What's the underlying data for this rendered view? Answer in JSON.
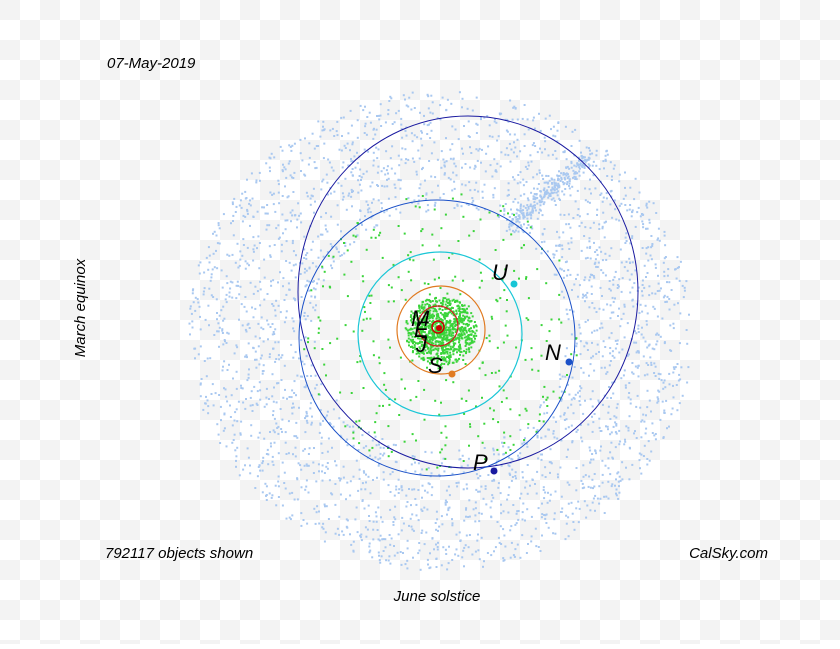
{
  "header": {
    "date": "07-May-2019"
  },
  "axes": {
    "left_label": "March equinox",
    "bottom_label": "June solstice"
  },
  "footer": {
    "count": "792117 objects shown",
    "credit": "CalSky.com"
  },
  "planets": [
    {
      "label": "U"
    },
    {
      "label": "N"
    },
    {
      "label": "P"
    },
    {
      "label": "S"
    },
    {
      "label": "J"
    },
    {
      "label": "M"
    },
    {
      "label": "E"
    }
  ]
}
